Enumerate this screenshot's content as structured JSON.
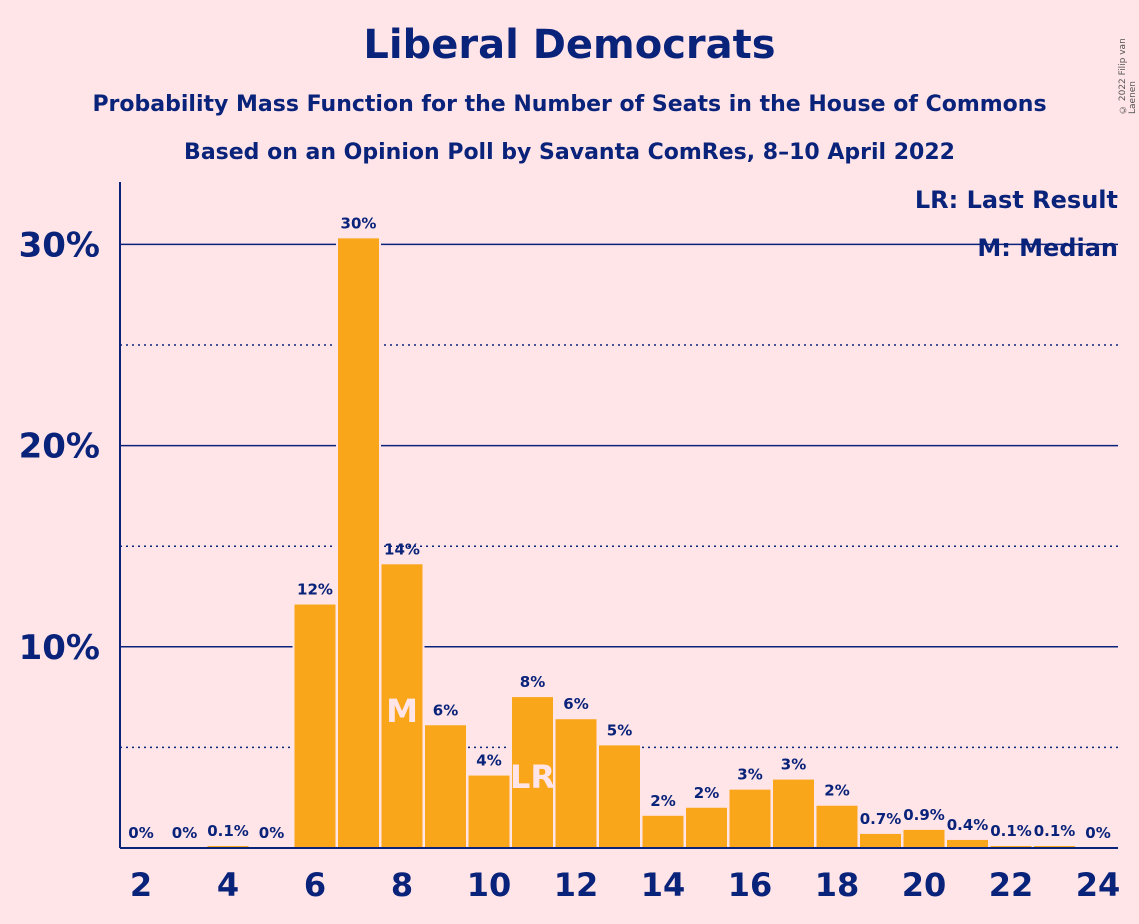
{
  "title": "Liberal Democrats",
  "subtitle": "Probability Mass Function for the Number of Seats in the House of Commons",
  "subtitle2": "Based on an Opinion Poll by Savanta ComRes, 8–10 April 2022",
  "copyright": "© 2022 Filip van Laenen",
  "legend": {
    "last_result": "LR: Last Result",
    "median": "M: Median"
  },
  "colors": {
    "bar": "#FAA61A",
    "text": "#0A237A",
    "background": "#FFE4E8",
    "marker_text": "#FFE4E8"
  },
  "chart_data": {
    "type": "bar",
    "x": [
      2,
      3,
      4,
      5,
      6,
      7,
      8,
      9,
      10,
      11,
      12,
      13,
      14,
      15,
      16,
      17,
      18,
      19,
      20,
      21,
      22,
      23,
      24
    ],
    "values": [
      0,
      0,
      0.1,
      0,
      12.1,
      30.3,
      14.1,
      6.1,
      3.6,
      7.5,
      6.4,
      5.1,
      1.6,
      2.0,
      2.9,
      3.4,
      2.1,
      0.7,
      0.9,
      0.4,
      0.1,
      0.1,
      0
    ],
    "data_labels": [
      "0%",
      "0%",
      "0.1%",
      "0%",
      "12%",
      "30%",
      "14%",
      "6%",
      "4%",
      "8%",
      "6%",
      "5%",
      "2%",
      "2%",
      "3%",
      "3%",
      "2%",
      "0.7%",
      "0.9%",
      "0.4%",
      "0.1%",
      "0.1%",
      "0%"
    ],
    "x_tick_labels": [
      "2",
      "4",
      "6",
      "8",
      "10",
      "12",
      "14",
      "16",
      "18",
      "20",
      "22",
      "24"
    ],
    "y_tick_labels": [
      "10%",
      "20%",
      "30%"
    ],
    "ylim": [
      0,
      33
    ],
    "xlabel": "",
    "ylabel": "",
    "median_seat": 8,
    "median_marker": "M",
    "last_result_seat": 11,
    "last_result_marker": "LR",
    "grid": "solid major lines at 10/20/30%, dotted minor lines at 5/15/25%"
  }
}
